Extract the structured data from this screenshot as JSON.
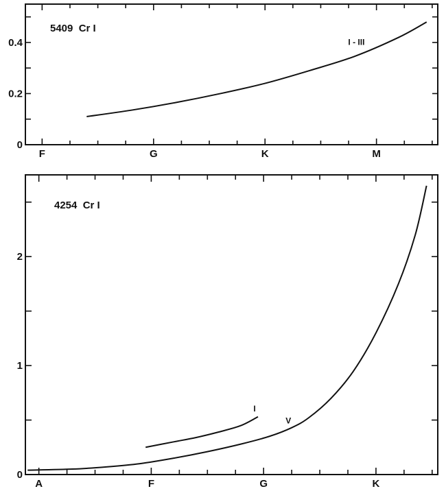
{
  "chart_data": [
    {
      "type": "line",
      "title": "5409  Cr I",
      "x_ticks": [
        "F",
        "G",
        "K",
        "M"
      ],
      "xlim": [
        -0.15,
        3.55
      ],
      "ylim": [
        0,
        0.55
      ],
      "y_ticks": [
        "0",
        "0.2",
        "0.4"
      ],
      "y_tick_values": [
        0,
        0.2,
        0.4
      ],
      "series": [
        {
          "name": "I - III",
          "label_at": [
            2.82,
            0.39
          ],
          "x": [
            0.4,
            0.8,
            1.2,
            1.6,
            2.0,
            2.4,
            2.8,
            3.2,
            3.45
          ],
          "y": [
            0.11,
            0.135,
            0.165,
            0.2,
            0.24,
            0.29,
            0.345,
            0.42,
            0.48
          ]
        }
      ]
    },
    {
      "type": "line",
      "title": "4254  Cr I",
      "x_ticks": [
        "A",
        "F",
        "G",
        "K"
      ],
      "xlim": [
        -0.12,
        3.55
      ],
      "ylim": [
        0,
        2.75
      ],
      "y_ticks": [
        "0",
        "1",
        "2"
      ],
      "y_tick_values": [
        0,
        1,
        2
      ],
      "series": [
        {
          "name": "I",
          "label_at": [
            1.92,
            0.58
          ],
          "x": [
            0.95,
            1.2,
            1.4,
            1.6,
            1.8,
            1.95
          ],
          "y": [
            0.25,
            0.3,
            0.34,
            0.39,
            0.45,
            0.53
          ]
        },
        {
          "name": "V",
          "label_at": [
            2.22,
            0.47
          ],
          "x": [
            -0.1,
            0.3,
            0.6,
            0.9,
            1.2,
            1.5,
            1.8,
            2.05,
            2.25,
            2.4,
            2.6,
            2.8,
            3.0,
            3.2,
            3.35,
            3.45
          ],
          "y": [
            0.04,
            0.05,
            0.07,
            0.1,
            0.15,
            0.21,
            0.28,
            0.35,
            0.43,
            0.52,
            0.7,
            0.95,
            1.3,
            1.75,
            2.2,
            2.65
          ]
        }
      ]
    }
  ]
}
